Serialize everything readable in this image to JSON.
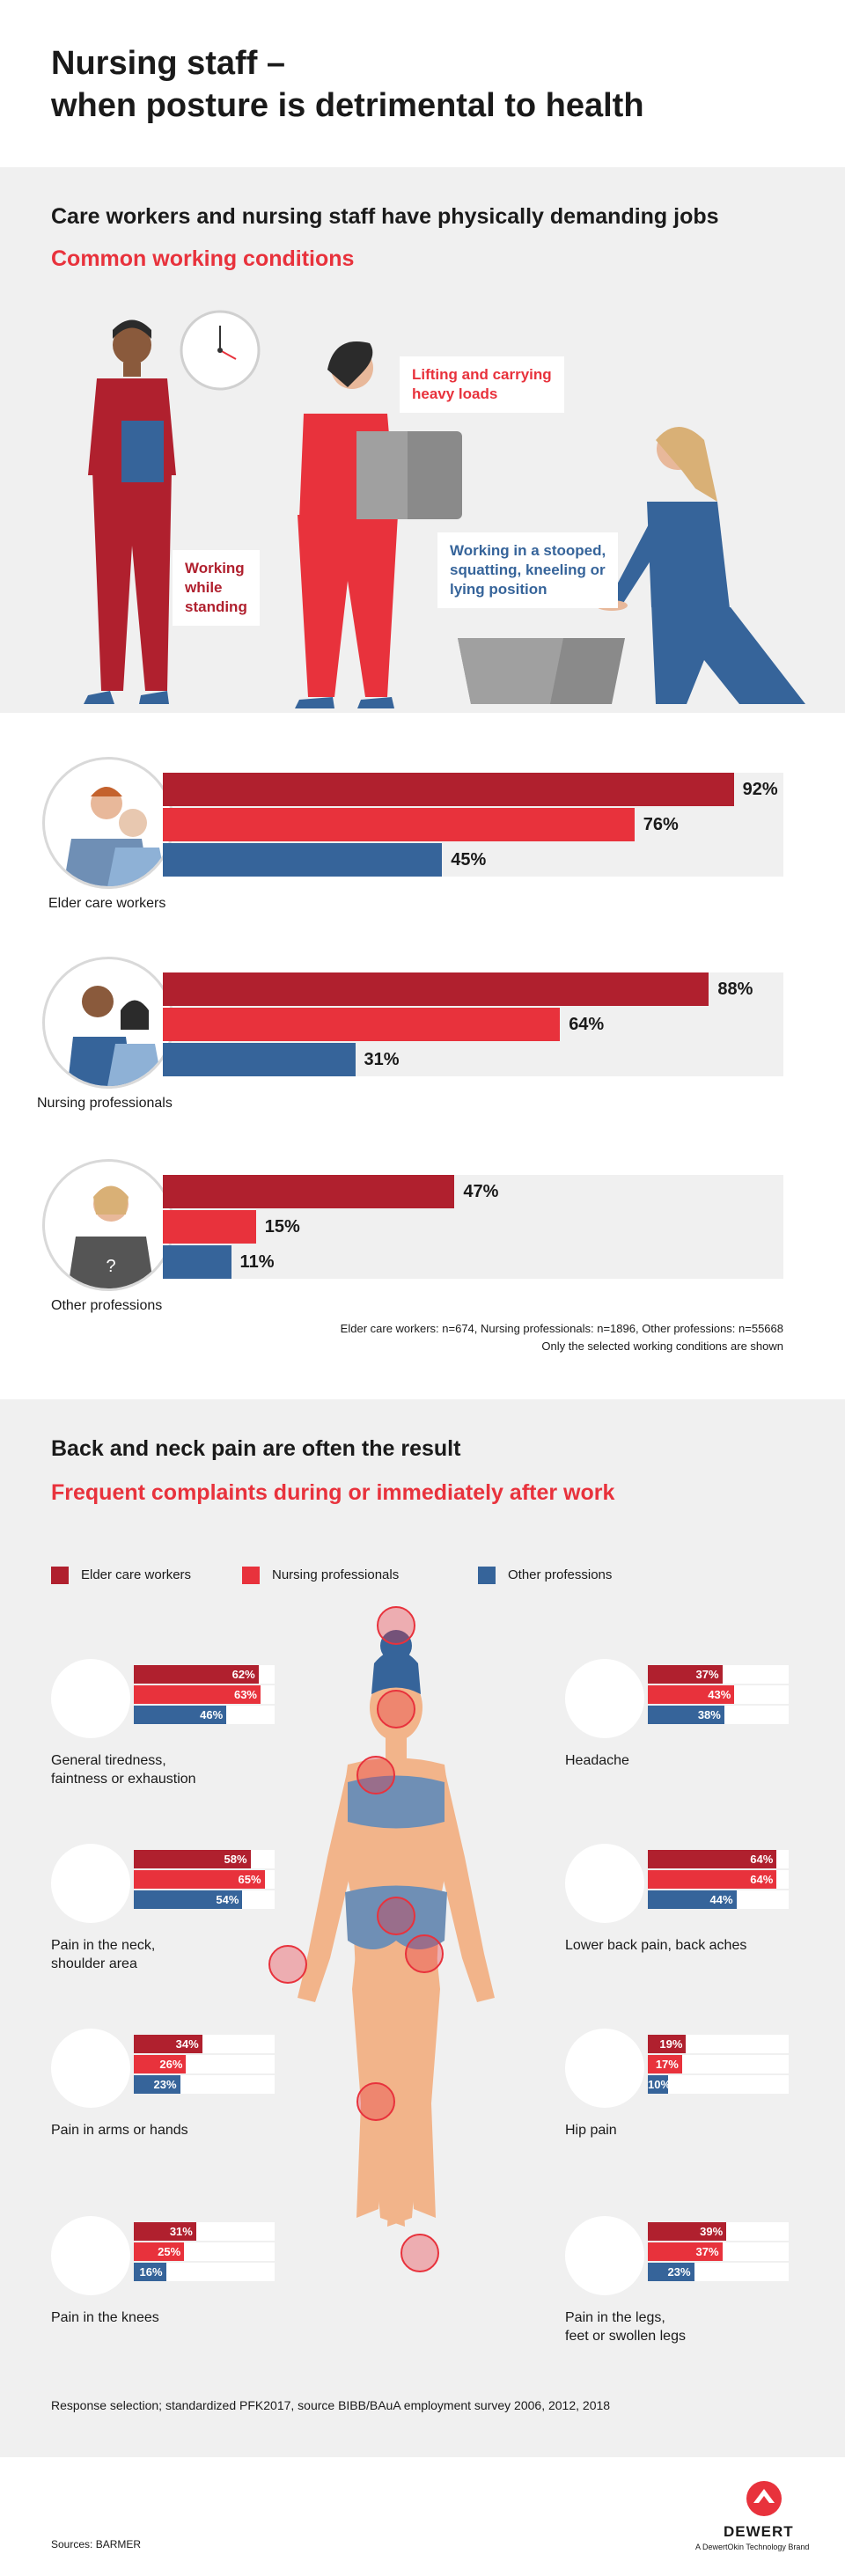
{
  "title_line1": "Nursing staff –",
  "title_line2": "when posture is detrimental to health",
  "section1": {
    "heading": "Care workers and nursing staff have physically demanding jobs",
    "subheading": "Common working conditions",
    "labels": {
      "standing": [
        "Working",
        "while",
        "standing"
      ],
      "lifting": [
        "Lifting and carrying",
        "heavy loads"
      ],
      "stooped": [
        "Working in a stooped,",
        "squatting, kneeling or",
        "lying position"
      ]
    }
  },
  "chart_data": [
    {
      "type": "bar",
      "categories": [
        "Elder care workers",
        "Nursing professionals",
        "Other professions"
      ],
      "series": [
        {
          "values": [
            92,
            88,
            47
          ]
        },
        {
          "values": [
            76,
            64,
            15
          ]
        },
        {
          "values": [
            45,
            31,
            11
          ]
        }
      ],
      "value_labels": [
        [
          "92%",
          "76%",
          "45%"
        ],
        [
          "88%",
          "64%",
          "31%"
        ],
        [
          "47%",
          "15%",
          "11%"
        ]
      ],
      "colors": [
        "#b0202e",
        "#e8323c",
        "#36649a"
      ],
      "ylim": [
        0,
        100
      ],
      "notes": [
        "Elder care workers: n=674, Nursing professionals: n=1896, Other professions: n=55668",
        "Only the selected working conditions are shown"
      ]
    },
    {
      "type": "bar",
      "legend": [
        "Elder care workers",
        "Nursing professionals",
        "Other professions"
      ],
      "categories": [
        "General tiredness, faintness or exhaustion",
        "Headache",
        "Pain in the neck, shoulder area",
        "Lower back pain, back aches",
        "Pain in arms or hands",
        "Hip pain",
        "Pain in the knees",
        "Pain in the legs, feet or swollen legs"
      ],
      "series": [
        {
          "name": "Elder care workers",
          "values": [
            62,
            37,
            58,
            64,
            34,
            19,
            31,
            39
          ]
        },
        {
          "name": "Nursing professionals",
          "values": [
            63,
            43,
            65,
            64,
            26,
            17,
            25,
            37
          ]
        },
        {
          "name": "Other professions",
          "values": [
            46,
            38,
            54,
            44,
            23,
            10,
            16,
            23
          ]
        }
      ],
      "colors": [
        "#b0202e",
        "#e8323c",
        "#36649a"
      ],
      "ylim": [
        0,
        100
      ]
    }
  ],
  "group_labels": [
    "Elder care workers",
    "Nursing professionals",
    "Other professions"
  ],
  "section2": {
    "heading": "Back and neck pain are often the result",
    "subheading": "Frequent complaints during or immediately after work",
    "complaints": [
      {
        "lines": [
          "General tiredness,",
          "faintness or exhaustion"
        ],
        "vals": [
          "62%",
          "63%",
          "46%"
        ]
      },
      {
        "lines": [
          "Headache"
        ],
        "vals": [
          "37%",
          "43%",
          "38%"
        ]
      },
      {
        "lines": [
          "Pain in the neck,",
          "shoulder area"
        ],
        "vals": [
          "58%",
          "65%",
          "54%"
        ]
      },
      {
        "lines": [
          "Lower back pain, back aches"
        ],
        "vals": [
          "64%",
          "64%",
          "44%"
        ]
      },
      {
        "lines": [
          "Pain in arms or hands"
        ],
        "vals": [
          "34%",
          "26%",
          "23%"
        ]
      },
      {
        "lines": [
          "Hip pain"
        ],
        "vals": [
          "19%",
          "17%",
          "10%"
        ]
      },
      {
        "lines": [
          "Pain in the knees"
        ],
        "vals": [
          "31%",
          "25%",
          "16%"
        ]
      },
      {
        "lines": [
          "Pain in the legs,",
          "feet or swollen legs"
        ],
        "vals": [
          "39%",
          "37%",
          "23%"
        ]
      }
    ],
    "source_note": "Response selection; standardized PFK2017, source BIBB/BAuA employment survey 2006, 2012, 2018"
  },
  "footer": {
    "sources": "Sources: BARMER",
    "brand": "DEWERT",
    "tagline": "A DewertOkin Technology Brand"
  }
}
